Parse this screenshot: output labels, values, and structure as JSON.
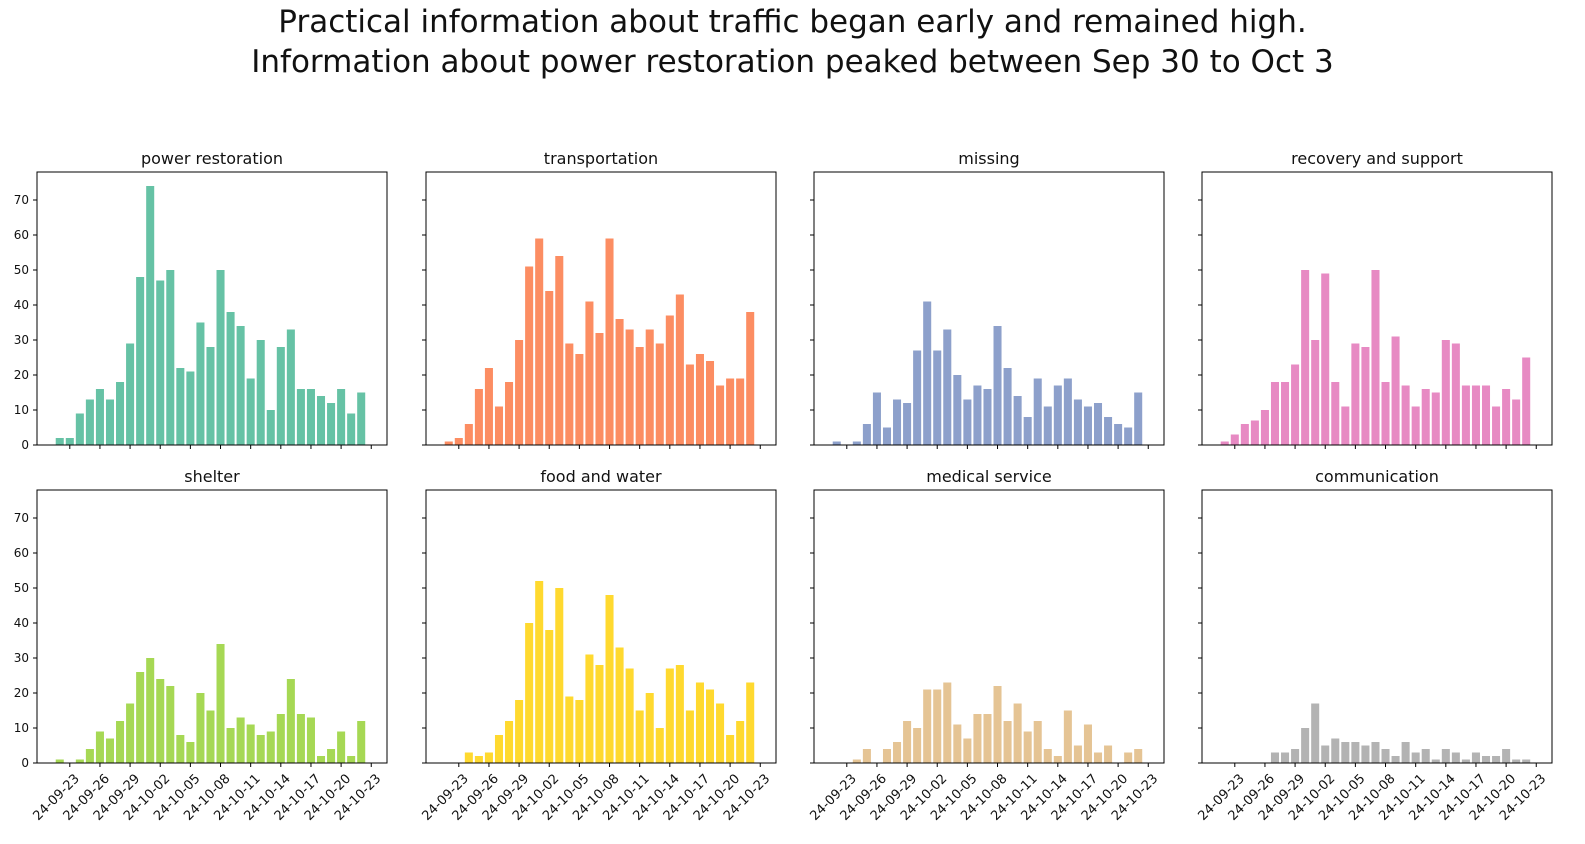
{
  "title_lines": [
    "Practical information about traffic began early and remained high.",
    "Information about power restoration peaked between Sep 30 to Oct 3"
  ],
  "chart_data": {
    "type": "bar",
    "layout": "grid 2x4, shared x and y axes",
    "ylim": [
      0,
      78
    ],
    "yticks": [
      0,
      10,
      20,
      30,
      40,
      50,
      60,
      70
    ],
    "categories": [
      "24-09-22",
      "24-09-23",
      "24-09-24",
      "24-09-25",
      "24-09-26",
      "24-09-27",
      "24-09-28",
      "24-09-29",
      "24-09-30",
      "24-10-01",
      "24-10-02",
      "24-10-03",
      "24-10-04",
      "24-10-05",
      "24-10-06",
      "24-10-07",
      "24-10-08",
      "24-10-09",
      "24-10-10",
      "24-10-11",
      "24-10-12",
      "24-10-13",
      "24-10-14",
      "24-10-15",
      "24-10-16",
      "24-10-17",
      "24-10-18",
      "24-10-19",
      "24-10-20",
      "24-10-21",
      "24-10-22",
      "24-10-23"
    ],
    "xticks": [
      "24-09-23",
      "24-09-26",
      "24-09-29",
      "24-10-02",
      "24-10-05",
      "24-10-08",
      "24-10-11",
      "24-10-14",
      "24-10-17",
      "24-10-20",
      "24-10-23"
    ],
    "panels": [
      {
        "title": "power restoration",
        "color": "#66c2a5",
        "values": [
          2,
          2,
          9,
          13,
          16,
          13,
          18,
          29,
          48,
          74,
          47,
          50,
          22,
          21,
          35,
          28,
          50,
          38,
          34,
          19,
          30,
          10,
          28,
          33,
          16,
          16,
          14,
          12,
          16,
          9,
          15,
          null
        ]
      },
      {
        "title": "transportation",
        "color": "#fc8d62",
        "values": [
          1,
          2,
          6,
          16,
          22,
          11,
          18,
          30,
          51,
          59,
          44,
          54,
          29,
          26,
          41,
          32,
          59,
          36,
          33,
          28,
          33,
          29,
          37,
          43,
          23,
          26,
          24,
          17,
          19,
          19,
          38,
          null
        ]
      },
      {
        "title": "missing",
        "color": "#8da0cb",
        "values": [
          1,
          0,
          1,
          6,
          15,
          5,
          13,
          12,
          27,
          41,
          27,
          33,
          20,
          13,
          17,
          16,
          34,
          22,
          14,
          8,
          19,
          11,
          17,
          19,
          13,
          11,
          12,
          8,
          6,
          5,
          15,
          null
        ]
      },
      {
        "title": "recovery and support",
        "color": "#e78ac3",
        "values": [
          1,
          3,
          6,
          7,
          10,
          18,
          18,
          23,
          50,
          30,
          49,
          18,
          11,
          29,
          28,
          50,
          18,
          31,
          17,
          11,
          16,
          15,
          30,
          29,
          17,
          17,
          17,
          11,
          16,
          13,
          25,
          null
        ]
      },
      {
        "title": "shelter",
        "color": "#a6d854",
        "values": [
          1,
          0,
          1,
          4,
          9,
          7,
          12,
          17,
          26,
          30,
          24,
          22,
          8,
          6,
          20,
          15,
          34,
          10,
          13,
          11,
          8,
          9,
          14,
          24,
          14,
          13,
          2,
          4,
          9,
          2,
          12,
          null
        ]
      },
      {
        "title": "food and water",
        "color": "#ffd92f",
        "values": [
          0,
          0,
          3,
          2,
          3,
          8,
          12,
          18,
          40,
          52,
          38,
          50,
          19,
          18,
          31,
          28,
          48,
          33,
          27,
          15,
          20,
          10,
          27,
          28,
          15,
          23,
          21,
          17,
          8,
          12,
          23,
          null
        ]
      },
      {
        "title": "medical service",
        "color": "#e5c494",
        "values": [
          0,
          0,
          1,
          4,
          0,
          4,
          6,
          12,
          10,
          21,
          21,
          23,
          11,
          7,
          14,
          14,
          22,
          12,
          17,
          9,
          12,
          4,
          2,
          15,
          5,
          11,
          3,
          5,
          0,
          3,
          4,
          null
        ]
      },
      {
        "title": "communication",
        "color": "#b3b3b3",
        "values": [
          0,
          0,
          0,
          0,
          0,
          3,
          3,
          4,
          10,
          17,
          5,
          7,
          6,
          6,
          5,
          6,
          4,
          2,
          6,
          3,
          4,
          1,
          4,
          3,
          1,
          3,
          2,
          2,
          4,
          1,
          1,
          null
        ]
      }
    ]
  }
}
